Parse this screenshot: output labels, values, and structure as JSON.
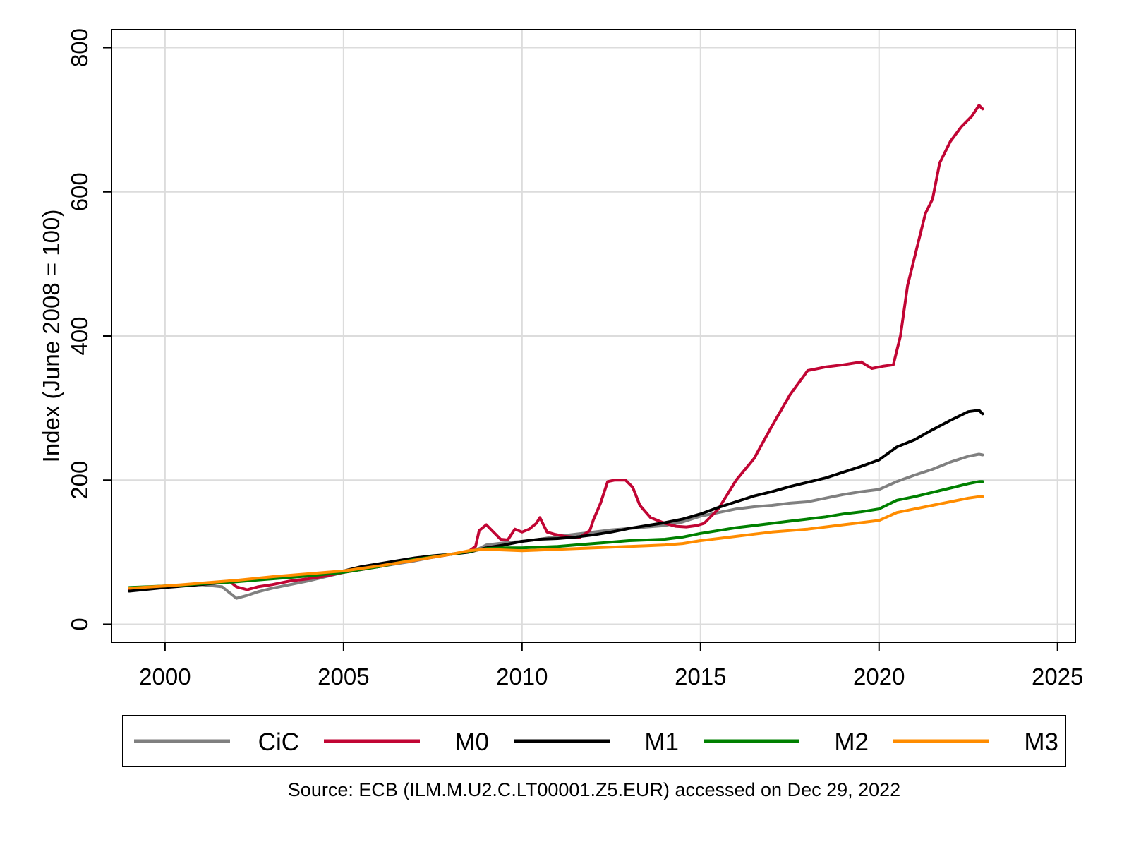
{
  "chart_data": {
    "type": "line",
    "ylabel": "Index (June 2008 = 100)",
    "xlabel": "",
    "xlim": [
      1998.5,
      2025.5
    ],
    "ylim": [
      -25,
      825
    ],
    "x_ticks": [
      2000,
      2005,
      2010,
      2015,
      2020,
      2025
    ],
    "y_ticks": [
      0,
      200,
      400,
      600,
      800
    ],
    "grid": true,
    "legend_position": "bottom",
    "note": "Source: ECB (ILM.M.U2.C.LT00001.Z5.EUR) accessed on Dec 29, 2022",
    "series": [
      {
        "name": "CiC",
        "color": "#808080",
        "points": [
          [
            1999.0,
            50
          ],
          [
            2000.0,
            53
          ],
          [
            2001.0,
            55
          ],
          [
            2001.6,
            52
          ],
          [
            2001.9,
            40
          ],
          [
            2002.0,
            36
          ],
          [
            2002.3,
            40
          ],
          [
            2002.6,
            45
          ],
          [
            2003.0,
            50
          ],
          [
            2003.5,
            55
          ],
          [
            2004.0,
            60
          ],
          [
            2004.5,
            66
          ],
          [
            2005.0,
            72
          ],
          [
            2005.5,
            76
          ],
          [
            2006.0,
            80
          ],
          [
            2006.5,
            84
          ],
          [
            2007.0,
            88
          ],
          [
            2007.5,
            93
          ],
          [
            2008.0,
            97
          ],
          [
            2008.4,
            100
          ],
          [
            2008.8,
            105
          ],
          [
            2009.0,
            110
          ],
          [
            2009.5,
            113
          ],
          [
            2010.0,
            115
          ],
          [
            2010.5,
            118
          ],
          [
            2011.0,
            122
          ],
          [
            2011.5,
            125
          ],
          [
            2012.0,
            128
          ],
          [
            2012.5,
            131
          ],
          [
            2013.0,
            133
          ],
          [
            2013.5,
            135
          ],
          [
            2014.0,
            137
          ],
          [
            2014.5,
            142
          ],
          [
            2015.0,
            150
          ],
          [
            2015.5,
            155
          ],
          [
            2016.0,
            160
          ],
          [
            2016.5,
            163
          ],
          [
            2017.0,
            165
          ],
          [
            2017.5,
            168
          ],
          [
            2018.0,
            170
          ],
          [
            2018.5,
            175
          ],
          [
            2019.0,
            180
          ],
          [
            2019.5,
            184
          ],
          [
            2020.0,
            187
          ],
          [
            2020.5,
            198
          ],
          [
            2021.0,
            207
          ],
          [
            2021.5,
            215
          ],
          [
            2022.0,
            225
          ],
          [
            2022.5,
            233
          ],
          [
            2022.8,
            236
          ],
          [
            2022.9,
            235
          ]
        ]
      },
      {
        "name": "M0",
        "color": "#c10534",
        "points": [
          [
            1999.0,
            48
          ],
          [
            2000.0,
            52
          ],
          [
            2001.0,
            55
          ],
          [
            2001.8,
            60
          ],
          [
            2002.0,
            52
          ],
          [
            2002.3,
            48
          ],
          [
            2002.6,
            52
          ],
          [
            2003.0,
            55
          ],
          [
            2003.5,
            60
          ],
          [
            2004.0,
            63
          ],
          [
            2004.5,
            67
          ],
          [
            2005.0,
            72
          ],
          [
            2005.5,
            76
          ],
          [
            2006.0,
            80
          ],
          [
            2006.5,
            85
          ],
          [
            2007.0,
            89
          ],
          [
            2007.5,
            93
          ],
          [
            2008.0,
            97
          ],
          [
            2008.5,
            101
          ],
          [
            2008.7,
            108
          ],
          [
            2008.8,
            130
          ],
          [
            2009.0,
            138
          ],
          [
            2009.2,
            128
          ],
          [
            2009.4,
            118
          ],
          [
            2009.6,
            117
          ],
          [
            2009.8,
            132
          ],
          [
            2010.0,
            128
          ],
          [
            2010.2,
            132
          ],
          [
            2010.4,
            140
          ],
          [
            2010.5,
            148
          ],
          [
            2010.7,
            128
          ],
          [
            2010.9,
            125
          ],
          [
            2011.2,
            122
          ],
          [
            2011.6,
            120
          ],
          [
            2011.9,
            130
          ],
          [
            2012.0,
            145
          ],
          [
            2012.2,
            168
          ],
          [
            2012.4,
            198
          ],
          [
            2012.6,
            200
          ],
          [
            2012.9,
            200
          ],
          [
            2013.1,
            190
          ],
          [
            2013.3,
            165
          ],
          [
            2013.6,
            148
          ],
          [
            2014.0,
            140
          ],
          [
            2014.3,
            136
          ],
          [
            2014.6,
            135
          ],
          [
            2014.9,
            137
          ],
          [
            2015.1,
            140
          ],
          [
            2015.5,
            160
          ],
          [
            2016.0,
            200
          ],
          [
            2016.5,
            230
          ],
          [
            2017.0,
            275
          ],
          [
            2017.5,
            318
          ],
          [
            2018.0,
            352
          ],
          [
            2018.5,
            357
          ],
          [
            2019.0,
            360
          ],
          [
            2019.5,
            364
          ],
          [
            2019.8,
            355
          ],
          [
            2020.1,
            358
          ],
          [
            2020.4,
            360
          ],
          [
            2020.6,
            400
          ],
          [
            2020.8,
            470
          ],
          [
            2021.0,
            510
          ],
          [
            2021.3,
            570
          ],
          [
            2021.5,
            590
          ],
          [
            2021.7,
            640
          ],
          [
            2022.0,
            670
          ],
          [
            2022.3,
            690
          ],
          [
            2022.6,
            705
          ],
          [
            2022.8,
            720
          ],
          [
            2022.9,
            715
          ]
        ]
      },
      {
        "name": "M1",
        "color": "#000000",
        "points": [
          [
            1999.0,
            46
          ],
          [
            2000.0,
            51
          ],
          [
            2001.0,
            55
          ],
          [
            2002.0,
            60
          ],
          [
            2003.0,
            64
          ],
          [
            2004.0,
            68
          ],
          [
            2005.0,
            74
          ],
          [
            2005.5,
            80
          ],
          [
            2006.0,
            84
          ],
          [
            2006.5,
            88
          ],
          [
            2007.0,
            92
          ],
          [
            2007.5,
            95
          ],
          [
            2008.0,
            97
          ],
          [
            2008.5,
            100
          ],
          [
            2009.0,
            106
          ],
          [
            2009.5,
            110
          ],
          [
            2010.0,
            115
          ],
          [
            2010.5,
            118
          ],
          [
            2011.0,
            119
          ],
          [
            2011.5,
            121
          ],
          [
            2012.0,
            124
          ],
          [
            2012.5,
            128
          ],
          [
            2013.0,
            133
          ],
          [
            2013.5,
            137
          ],
          [
            2014.0,
            141
          ],
          [
            2014.5,
            146
          ],
          [
            2015.0,
            153
          ],
          [
            2015.5,
            162
          ],
          [
            2016.0,
            170
          ],
          [
            2016.5,
            178
          ],
          [
            2017.0,
            184
          ],
          [
            2017.5,
            191
          ],
          [
            2018.0,
            197
          ],
          [
            2018.5,
            203
          ],
          [
            2019.0,
            211
          ],
          [
            2019.5,
            219
          ],
          [
            2020.0,
            228
          ],
          [
            2020.5,
            246
          ],
          [
            2021.0,
            256
          ],
          [
            2021.5,
            270
          ],
          [
            2022.0,
            283
          ],
          [
            2022.5,
            295
          ],
          [
            2022.8,
            297
          ],
          [
            2022.9,
            292
          ]
        ]
      },
      {
        "name": "M2",
        "color": "#008000",
        "points": [
          [
            1999.0,
            51
          ],
          [
            2000.0,
            53
          ],
          [
            2001.0,
            56
          ],
          [
            2002.0,
            59
          ],
          [
            2003.0,
            63
          ],
          [
            2004.0,
            67
          ],
          [
            2005.0,
            72
          ],
          [
            2006.0,
            80
          ],
          [
            2007.0,
            90
          ],
          [
            2008.0,
            97
          ],
          [
            2008.5,
            101
          ],
          [
            2009.0,
            105
          ],
          [
            2009.5,
            106
          ],
          [
            2010.0,
            106
          ],
          [
            2010.5,
            107
          ],
          [
            2011.0,
            108
          ],
          [
            2011.5,
            110
          ],
          [
            2012.0,
            112
          ],
          [
            2012.5,
            114
          ],
          [
            2013.0,
            116
          ],
          [
            2013.5,
            117
          ],
          [
            2014.0,
            118
          ],
          [
            2014.5,
            121
          ],
          [
            2015.0,
            126
          ],
          [
            2015.5,
            130
          ],
          [
            2016.0,
            134
          ],
          [
            2016.5,
            137
          ],
          [
            2017.0,
            140
          ],
          [
            2017.5,
            143
          ],
          [
            2018.0,
            146
          ],
          [
            2018.5,
            149
          ],
          [
            2019.0,
            153
          ],
          [
            2019.5,
            156
          ],
          [
            2020.0,
            160
          ],
          [
            2020.5,
            172
          ],
          [
            2021.0,
            177
          ],
          [
            2021.5,
            183
          ],
          [
            2022.0,
            189
          ],
          [
            2022.5,
            195
          ],
          [
            2022.8,
            198
          ],
          [
            2022.9,
            198
          ]
        ]
      },
      {
        "name": "M3",
        "color": "#ff8c00",
        "points": [
          [
            1999.0,
            50
          ],
          [
            2000.0,
            53
          ],
          [
            2001.0,
            57
          ],
          [
            2002.0,
            61
          ],
          [
            2003.0,
            66
          ],
          [
            2004.0,
            70
          ],
          [
            2005.0,
            74
          ],
          [
            2006.0,
            81
          ],
          [
            2007.0,
            89
          ],
          [
            2008.0,
            97
          ],
          [
            2008.5,
            102
          ],
          [
            2009.0,
            104
          ],
          [
            2009.5,
            103
          ],
          [
            2010.0,
            102
          ],
          [
            2010.5,
            103
          ],
          [
            2011.0,
            104
          ],
          [
            2011.5,
            105
          ],
          [
            2012.0,
            106
          ],
          [
            2012.5,
            107
          ],
          [
            2013.0,
            108
          ],
          [
            2013.5,
            109
          ],
          [
            2014.0,
            110
          ],
          [
            2014.5,
            112
          ],
          [
            2015.0,
            116
          ],
          [
            2015.5,
            119
          ],
          [
            2016.0,
            122
          ],
          [
            2016.5,
            125
          ],
          [
            2017.0,
            128
          ],
          [
            2017.5,
            130
          ],
          [
            2018.0,
            132
          ],
          [
            2018.5,
            135
          ],
          [
            2019.0,
            138
          ],
          [
            2019.5,
            141
          ],
          [
            2020.0,
            144
          ],
          [
            2020.5,
            155
          ],
          [
            2021.0,
            160
          ],
          [
            2021.5,
            165
          ],
          [
            2022.0,
            170
          ],
          [
            2022.5,
            175
          ],
          [
            2022.8,
            177
          ],
          [
            2022.9,
            177
          ]
        ]
      }
    ]
  }
}
